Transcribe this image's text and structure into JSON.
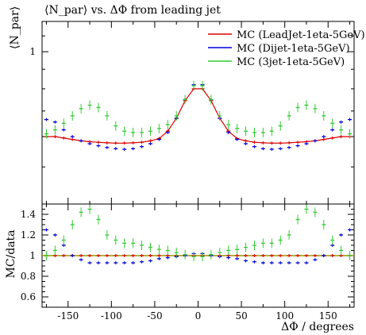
{
  "chart_data": [
    {
      "type": "scatter",
      "title": "⟨N_par⟩ vs. ΔΦ from leading jet",
      "ylabel": "⟨N_par⟩",
      "xlabel": "",
      "xlim": [
        -180,
        180
      ],
      "ylim": [
        0.4,
        1.2
      ],
      "ylog": true,
      "yticks": [
        1
      ],
      "ytick_labels": [
        "1"
      ],
      "grid": false,
      "legend_position": "top-right",
      "series": [
        {
          "name": "MC (LeadJet-1eta-5GeV)",
          "color": "#dd0000",
          "x": [
            -175,
            -165,
            -155,
            -145,
            -135,
            -125,
            -115,
            -105,
            -95,
            -85,
            -75,
            -65,
            -55,
            -45,
            -35,
            -25,
            -15,
            -5,
            5,
            15,
            25,
            35,
            45,
            55,
            65,
            75,
            85,
            95,
            105,
            115,
            125,
            135,
            145,
            155,
            165,
            175
          ],
          "y": [
            0.6,
            0.6,
            0.595,
            0.59,
            0.585,
            0.582,
            0.58,
            0.578,
            0.577,
            0.577,
            0.578,
            0.58,
            0.585,
            0.593,
            0.62,
            0.67,
            0.745,
            0.8,
            0.8,
            0.745,
            0.67,
            0.62,
            0.593,
            0.585,
            0.58,
            0.578,
            0.577,
            0.577,
            0.578,
            0.58,
            0.582,
            0.585,
            0.59,
            0.595,
            0.6,
            0.6
          ]
        },
        {
          "name": "MC (Dijet-1eta-5GeV)",
          "color": "#0000dd",
          "x": [
            -175,
            -165,
            -155,
            -145,
            -135,
            -125,
            -115,
            -105,
            -95,
            -85,
            -75,
            -65,
            -55,
            -45,
            -35,
            -25,
            -15,
            -5,
            5,
            15,
            25,
            35,
            45,
            55,
            65,
            75,
            85,
            95,
            105,
            115,
            125,
            135,
            145,
            155,
            165,
            175
          ],
          "y": [
            0.665,
            0.655,
            0.625,
            0.6,
            0.585,
            0.575,
            0.568,
            0.562,
            0.558,
            0.556,
            0.558,
            0.565,
            0.575,
            0.59,
            0.615,
            0.67,
            0.75,
            0.82,
            0.82,
            0.75,
            0.67,
            0.615,
            0.59,
            0.575,
            0.565,
            0.558,
            0.556,
            0.558,
            0.562,
            0.568,
            0.575,
            0.585,
            0.6,
            0.625,
            0.655,
            0.665
          ]
        },
        {
          "name": "MC (3jet-1eta-5GeV)",
          "color": "#33cc33",
          "x": [
            -175,
            -165,
            -155,
            -145,
            -135,
            -125,
            -115,
            -105,
            -95,
            -85,
            -75,
            -65,
            -55,
            -45,
            -35,
            -25,
            -15,
            -5,
            5,
            15,
            25,
            35,
            45,
            55,
            65,
            75,
            85,
            95,
            105,
            115,
            125,
            135,
            145,
            155,
            165,
            175
          ],
          "y": [
            0.61,
            0.625,
            0.65,
            0.68,
            0.71,
            0.725,
            0.715,
            0.68,
            0.64,
            0.62,
            0.615,
            0.615,
            0.62,
            0.63,
            0.645,
            0.68,
            0.75,
            0.815,
            0.815,
            0.75,
            0.68,
            0.645,
            0.63,
            0.62,
            0.615,
            0.615,
            0.62,
            0.64,
            0.68,
            0.715,
            0.725,
            0.71,
            0.68,
            0.65,
            0.625,
            0.61
          ]
        }
      ]
    },
    {
      "type": "scatter",
      "title": "",
      "ylabel": "MC/data",
      "xlabel": "ΔΦ / degrees",
      "xlim": [
        -180,
        180
      ],
      "ylim": [
        0.5,
        1.5
      ],
      "yticks": [
        0.6,
        0.8,
        1,
        1.2,
        1.4
      ],
      "ytick_labels": [
        "0.6",
        "0.8",
        "1",
        "1.2",
        "1.4"
      ],
      "xticks": [
        -150,
        -100,
        -50,
        0,
        50,
        100,
        150
      ],
      "xtick_labels": [
        "-150",
        "-100",
        "-50",
        "0",
        "50",
        "100",
        "150"
      ],
      "reference_line": 1,
      "reference_color": "#999900",
      "grid": false,
      "series": [
        {
          "name": "MC (LeadJet-1eta-5GeV)",
          "color": "#dd0000",
          "x": [
            -175,
            -165,
            -155,
            -145,
            -135,
            -125,
            -115,
            -105,
            -95,
            -85,
            -75,
            -65,
            -55,
            -45,
            -35,
            -25,
            -15,
            -5,
            5,
            15,
            25,
            35,
            45,
            55,
            65,
            75,
            85,
            95,
            105,
            115,
            125,
            135,
            145,
            155,
            165,
            175
          ],
          "y": [
            1.0,
            1.0,
            1.0,
            1.0,
            1.0,
            1.0,
            1.0,
            1.0,
            1.0,
            1.0,
            1.0,
            1.0,
            1.0,
            1.0,
            1.0,
            1.0,
            1.0,
            1.0,
            1.0,
            1.0,
            1.0,
            1.0,
            1.0,
            1.0,
            1.0,
            1.0,
            1.0,
            1.0,
            1.0,
            1.0,
            1.0,
            1.0,
            1.0,
            1.0,
            1.0,
            1.0
          ]
        },
        {
          "name": "MC (Dijet-1eta-5GeV)",
          "color": "#0000dd",
          "x": [
            -175,
            -165,
            -155,
            -145,
            -135,
            -125,
            -115,
            -105,
            -95,
            -85,
            -75,
            -65,
            -55,
            -45,
            -35,
            -25,
            -15,
            -5,
            5,
            15,
            25,
            35,
            45,
            55,
            65,
            75,
            85,
            95,
            105,
            115,
            125,
            135,
            145,
            155,
            165,
            175
          ],
          "y": [
            1.25,
            1.2,
            1.1,
            1.0,
            0.96,
            0.93,
            0.93,
            0.93,
            0.93,
            0.93,
            0.93,
            0.94,
            0.95,
            0.97,
            0.98,
            0.99,
            1.0,
            1.02,
            1.02,
            1.0,
            0.99,
            0.98,
            0.97,
            0.95,
            0.94,
            0.93,
            0.93,
            0.93,
            0.93,
            0.93,
            0.93,
            0.96,
            1.0,
            1.1,
            1.2,
            1.25
          ]
        },
        {
          "name": "MC (3jet-1eta-5GeV)",
          "color": "#33cc33",
          "x": [
            -175,
            -165,
            -155,
            -145,
            -135,
            -125,
            -115,
            -105,
            -95,
            -85,
            -75,
            -65,
            -55,
            -45,
            -35,
            -25,
            -15,
            -5,
            5,
            15,
            25,
            35,
            45,
            55,
            65,
            75,
            85,
            95,
            105,
            115,
            125,
            135,
            145,
            155,
            165,
            175
          ],
          "y": [
            1.0,
            1.05,
            1.15,
            1.3,
            1.42,
            1.45,
            1.35,
            1.2,
            1.15,
            1.12,
            1.12,
            1.1,
            1.08,
            1.06,
            1.05,
            1.03,
            1.01,
            0.99,
            0.99,
            1.01,
            1.03,
            1.05,
            1.06,
            1.08,
            1.1,
            1.12,
            1.12,
            1.15,
            1.2,
            1.35,
            1.45,
            1.42,
            1.3,
            1.15,
            1.05,
            1.0
          ]
        }
      ]
    }
  ]
}
